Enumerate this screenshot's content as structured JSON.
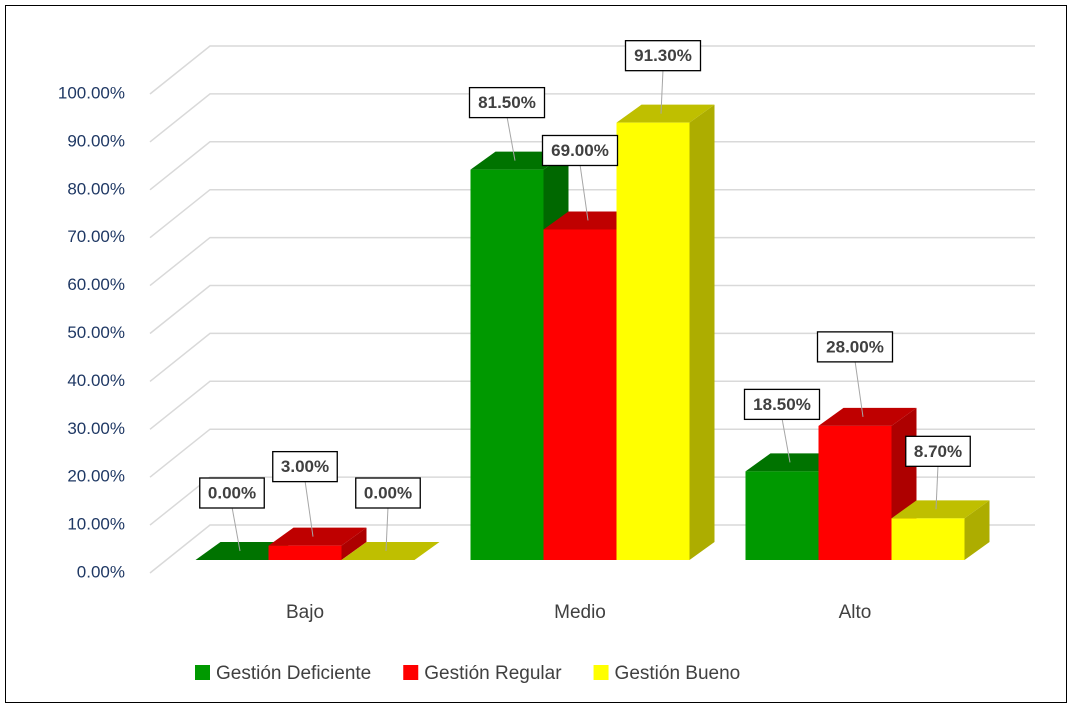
{
  "chart_data": {
    "type": "bar3d",
    "categories": [
      "Bajo",
      "Medio",
      "Alto"
    ],
    "series": [
      {
        "name": "Gestión Deficiente",
        "color": "#009900",
        "values": [
          0,
          81.5,
          18.5
        ],
        "value_labels": [
          "0.00%",
          "81.50%",
          "18.50%"
        ]
      },
      {
        "name": "Gestión Regular",
        "color": "#ff0000",
        "values": [
          3,
          69,
          28
        ],
        "value_labels": [
          "3.00%",
          "69.00%",
          "28.00%"
        ]
      },
      {
        "name": "Gestión Bueno",
        "color": "#ffff00",
        "values": [
          0,
          91.3,
          8.7
        ],
        "value_labels": [
          "0.00%",
          "91.30%",
          "8.70%"
        ]
      }
    ],
    "ylim": [
      0,
      100
    ],
    "yticks": [
      {
        "value": 0,
        "label": "0.00%"
      },
      {
        "value": 10,
        "label": "10.00%"
      },
      {
        "value": 20,
        "label": "20.00%"
      },
      {
        "value": 30,
        "label": "30.00%"
      },
      {
        "value": 40,
        "label": "40.00%"
      },
      {
        "value": 50,
        "label": "50.00%"
      },
      {
        "value": 60,
        "label": "60.00%"
      },
      {
        "value": 70,
        "label": "70.00%"
      },
      {
        "value": 80,
        "label": "80.00%"
      },
      {
        "value": 90,
        "label": "90.00%"
      },
      {
        "value": 100,
        "label": "100.00%"
      }
    ],
    "grid": true,
    "legend": "bottom"
  }
}
